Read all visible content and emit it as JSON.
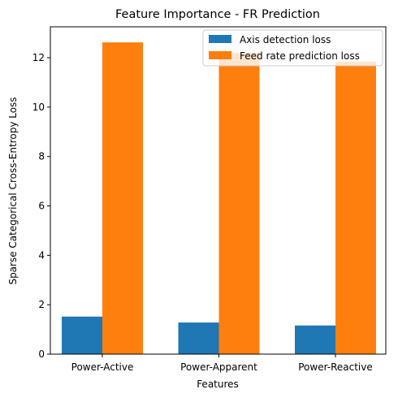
{
  "chart_data": {
    "type": "bar",
    "title": "Feature Importance - FR Prediction",
    "xlabel": "Features",
    "ylabel": "Sparse Categorical Cross-Entropy Loss",
    "categories": [
      "Power-Active",
      "Power-Apparent",
      "Power-Reactive"
    ],
    "series": [
      {
        "name": "Axis detection loss",
        "color": "#1f77b4",
        "values": [
          1.52,
          1.28,
          1.16
        ]
      },
      {
        "name": "Feed rate prediction loss",
        "color": "#ff7f0e",
        "values": [
          12.62,
          12.2,
          11.84
        ]
      }
    ],
    "ylim": [
      0,
      13.25
    ],
    "yticks": [
      0,
      2,
      4,
      6,
      8,
      10,
      12
    ],
    "grid": false,
    "legend_position": "upper-right"
  }
}
